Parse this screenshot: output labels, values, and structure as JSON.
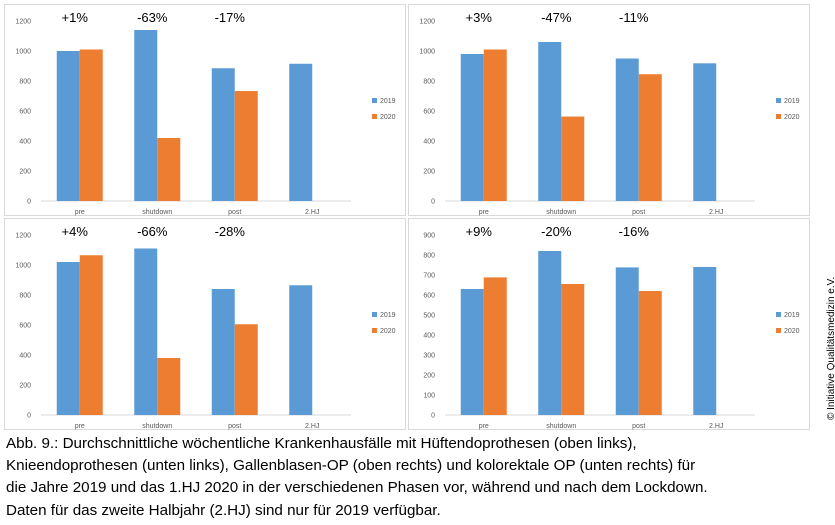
{
  "chart_data": [
    {
      "type": "bar",
      "categories": [
        "pre",
        "shutdown",
        "post",
        "2.HJ"
      ],
      "series": [
        {
          "name": "2019",
          "values": [
            1000,
            1140,
            885,
            915
          ]
        },
        {
          "name": "2020",
          "values": [
            1010,
            420,
            733,
            null
          ]
        }
      ],
      "annotations": [
        "+1%",
        "-63%",
        "-17%"
      ],
      "yticks": [
        "0",
        "200",
        "400",
        "600",
        "800",
        "1000",
        "1200"
      ],
      "ylim": [
        0,
        1200
      ],
      "legend": "right"
    },
    {
      "type": "bar",
      "categories": [
        "pre",
        "shutdown",
        "post",
        "2.HJ"
      ],
      "series": [
        {
          "name": "2019",
          "values": [
            980,
            1060,
            950,
            918
          ]
        },
        {
          "name": "2020",
          "values": [
            1010,
            563,
            845,
            null
          ]
        }
      ],
      "annotations": [
        "+3%",
        "-47%",
        "-11%"
      ],
      "yticks": [
        "0",
        "200",
        "400",
        "600",
        "800",
        "1000",
        "1200"
      ],
      "ylim": [
        0,
        1200
      ],
      "legend": "right"
    },
    {
      "type": "bar",
      "categories": [
        "pre",
        "shutdown",
        "post",
        "2.HJ"
      ],
      "series": [
        {
          "name": "2019",
          "values": [
            1020,
            1110,
            840,
            865
          ]
        },
        {
          "name": "2020",
          "values": [
            1065,
            380,
            605,
            null
          ]
        }
      ],
      "annotations": [
        "+4%",
        "-66%",
        "-28%"
      ],
      "yticks": [
        "0",
        "200",
        "400",
        "600",
        "800",
        "1000",
        "1200"
      ],
      "ylim": [
        0,
        1200
      ],
      "legend": "right"
    },
    {
      "type": "bar",
      "categories": [
        "pre",
        "shutdown",
        "post",
        "2.HJ"
      ],
      "series": [
        {
          "name": "2019",
          "values": [
            630,
            820,
            738,
            740
          ]
        },
        {
          "name": "2020",
          "values": [
            688,
            655,
            620,
            null
          ]
        }
      ],
      "annotations": [
        "+9%",
        "-20%",
        "-16%"
      ],
      "yticks": [
        "0",
        "100",
        "200",
        "300",
        "400",
        "500",
        "600",
        "700",
        "800",
        "900"
      ],
      "ylim": [
        0,
        900
      ],
      "legend": "right"
    }
  ],
  "colors": {
    "s2019": "#5b9bd5",
    "s2020": "#ed7d31",
    "axis": "#d9d9d9",
    "text": "#595959"
  },
  "caption": {
    "line1": "Abb. 9.: Durchschnittliche wöchentliche Krankenhausfälle mit Hüftendoprothesen (oben links),",
    "line2": "Knieendoprothesen (unten links), Gallenblasen-OP (oben rechts) und kolorektale OP (unten rechts) für",
    "line3": "die Jahre 2019 und das 1.HJ 2020 in der verschiedenen Phasen vor, während und nach dem Lockdown.",
    "line4": "Daten für das zweite Halbjahr (2.HJ) sind nur für 2019 verfügbar."
  },
  "copyright": "© Initiative Qualitätsmedizin e.V."
}
